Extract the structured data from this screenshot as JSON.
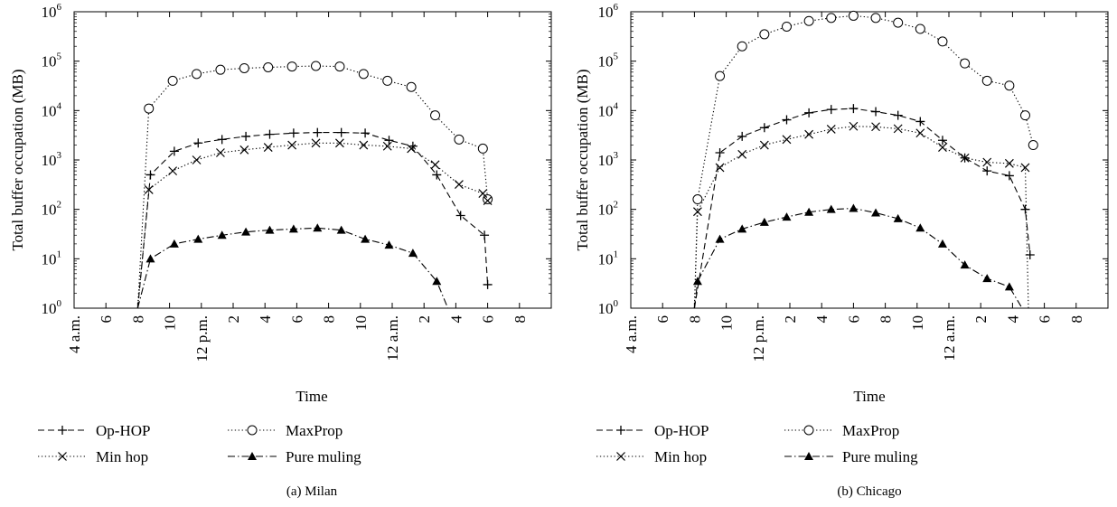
{
  "chart_data": [
    {
      "type": "line",
      "panel_caption": "(a) Milan",
      "xlabel": "Time",
      "ylabel": "Total buffer occupation (MB)",
      "yscale": "log",
      "ylim": [
        1,
        1000000
      ],
      "x_units": "hours since 4 a.m.",
      "xlim": [
        0,
        30
      ],
      "x_ticks": [
        {
          "x": 0,
          "label": "4 a.m."
        },
        {
          "x": 2,
          "label": "6"
        },
        {
          "x": 4,
          "label": "8"
        },
        {
          "x": 6,
          "label": "10"
        },
        {
          "x": 8,
          "label": "12 p.m."
        },
        {
          "x": 10,
          "label": "2"
        },
        {
          "x": 12,
          "label": "4"
        },
        {
          "x": 14,
          "label": "6"
        },
        {
          "x": 16,
          "label": "8"
        },
        {
          "x": 18,
          "label": "10"
        },
        {
          "x": 20,
          "label": "12 a.m."
        },
        {
          "x": 22,
          "label": "2"
        },
        {
          "x": 24,
          "label": "4"
        },
        {
          "x": 26,
          "label": "6"
        },
        {
          "x": 28,
          "label": "8"
        }
      ],
      "y_ticks": [
        {
          "exp": 0,
          "base": "10",
          "sup": "0"
        },
        {
          "exp": 1,
          "base": "10",
          "sup": "1"
        },
        {
          "exp": 2,
          "base": "10",
          "sup": "2"
        },
        {
          "exp": 3,
          "base": "10",
          "sup": "3"
        },
        {
          "exp": 4,
          "base": "10",
          "sup": "4"
        },
        {
          "exp": 5,
          "base": "10",
          "sup": "5"
        },
        {
          "exp": 6,
          "base": "10",
          "sup": "6"
        }
      ],
      "series": [
        {
          "name": "Op-HOP",
          "marker": "plus",
          "dash": "dashed",
          "x": [
            4.0,
            4.8,
            6.3,
            7.8,
            9.3,
            10.8,
            12.3,
            13.8,
            15.3,
            16.8,
            18.3,
            19.8,
            21.3,
            22.8,
            24.3,
            25.8,
            26.0
          ],
          "y": [
            1,
            500,
            1500,
            2200,
            2600,
            3000,
            3300,
            3500,
            3600,
            3600,
            3500,
            2500,
            1900,
            500,
            75,
            30,
            3
          ]
        },
        {
          "name": "MaxProp",
          "marker": "circle",
          "dash": "dotted",
          "x": [
            4.0,
            4.7,
            6.2,
            7.7,
            9.2,
            10.7,
            12.2,
            13.7,
            15.2,
            16.7,
            18.2,
            19.7,
            21.2,
            22.7,
            24.2,
            25.7,
            26.0
          ],
          "y": [
            1,
            11000,
            40000,
            55000,
            67000,
            72000,
            75000,
            78000,
            80000,
            78000,
            55000,
            40000,
            30000,
            8000,
            2600,
            1700,
            160
          ]
        },
        {
          "name": "Min hop",
          "marker": "x",
          "dash": "dotted",
          "x": [
            4.0,
            4.7,
            6.2,
            7.7,
            9.2,
            10.7,
            12.2,
            13.7,
            15.2,
            16.7,
            18.2,
            19.7,
            21.2,
            22.7,
            24.2,
            25.7,
            26.0
          ],
          "y": [
            1,
            250,
            600,
            1000,
            1400,
            1600,
            1800,
            2000,
            2200,
            2200,
            2000,
            1900,
            1700,
            800,
            320,
            210,
            150
          ]
        },
        {
          "name": "Pure muling",
          "marker": "triangle",
          "dash": "dashdot",
          "x": [
            4.0,
            4.8,
            6.3,
            7.8,
            9.3,
            10.8,
            12.3,
            13.8,
            15.3,
            16.8,
            18.3,
            19.8,
            21.3,
            22.8,
            23.5
          ],
          "y": [
            1,
            10,
            20,
            25,
            30,
            35,
            38,
            40,
            42,
            38,
            25,
            19,
            13,
            3.5,
            1
          ]
        }
      ]
    },
    {
      "type": "line",
      "panel_caption": "(b) Chicago",
      "xlabel": "Time",
      "ylabel": "Total buffer occupation (MB)",
      "yscale": "log",
      "ylim": [
        1,
        1000000
      ],
      "x_units": "hours since 4 a.m.",
      "xlim": [
        0,
        30
      ],
      "x_ticks": [
        {
          "x": 0,
          "label": "4 a.m."
        },
        {
          "x": 2,
          "label": "6"
        },
        {
          "x": 4,
          "label": "8"
        },
        {
          "x": 6,
          "label": "10"
        },
        {
          "x": 8,
          "label": "12 p.m."
        },
        {
          "x": 10,
          "label": "2"
        },
        {
          "x": 12,
          "label": "4"
        },
        {
          "x": 14,
          "label": "6"
        },
        {
          "x": 16,
          "label": "8"
        },
        {
          "x": 18,
          "label": "10"
        },
        {
          "x": 20,
          "label": "12 a.m."
        },
        {
          "x": 22,
          "label": "2"
        },
        {
          "x": 24,
          "label": "4"
        },
        {
          "x": 26,
          "label": "6"
        },
        {
          "x": 28,
          "label": "8"
        }
      ],
      "y_ticks": [
        {
          "exp": 0,
          "base": "10",
          "sup": "0"
        },
        {
          "exp": 1,
          "base": "10",
          "sup": "1"
        },
        {
          "exp": 2,
          "base": "10",
          "sup": "2"
        },
        {
          "exp": 3,
          "base": "10",
          "sup": "3"
        },
        {
          "exp": 4,
          "base": "10",
          "sup": "4"
        },
        {
          "exp": 5,
          "base": "10",
          "sup": "5"
        },
        {
          "exp": 6,
          "base": "10",
          "sup": "6"
        }
      ],
      "series": [
        {
          "name": "Op-HOP",
          "marker": "plus",
          "dash": "dashed",
          "x": [
            4.0,
            5.6,
            7.0,
            8.4,
            9.8,
            11.2,
            12.6,
            14.0,
            15.4,
            16.8,
            18.2,
            19.6,
            21.0,
            22.4,
            23.8,
            24.8,
            25.1
          ],
          "y": [
            1,
            1400,
            3000,
            4500,
            6500,
            9000,
            10500,
            11000,
            9500,
            8000,
            6000,
            2500,
            1100,
            600,
            480,
            100,
            12
          ]
        },
        {
          "name": "MaxProp",
          "marker": "circle",
          "dash": "dotted",
          "x": [
            4.0,
            4.2,
            5.6,
            7.0,
            8.4,
            9.8,
            11.2,
            12.6,
            14.0,
            15.4,
            16.8,
            18.2,
            19.6,
            21.0,
            22.4,
            23.8,
            24.8,
            25.3
          ],
          "y": [
            1,
            160,
            50000,
            200000,
            350000,
            500000,
            650000,
            750000,
            830000,
            750000,
            600000,
            450000,
            250000,
            90000,
            40000,
            32000,
            8000,
            2000
          ]
        },
        {
          "name": "Min hop",
          "marker": "x",
          "dash": "dotted",
          "x": [
            4.0,
            4.2,
            5.6,
            7.0,
            8.4,
            9.8,
            11.2,
            12.6,
            14.0,
            15.4,
            16.8,
            18.2,
            19.6,
            21.0,
            22.4,
            23.8,
            24.8,
            25.0
          ],
          "y": [
            1,
            90,
            700,
            1300,
            2000,
            2600,
            3300,
            4200,
            4800,
            4700,
            4300,
            3500,
            1800,
            1100,
            900,
            850,
            700,
            1
          ]
        },
        {
          "name": "Pure muling",
          "marker": "triangle",
          "dash": "dashdot",
          "x": [
            4.0,
            4.2,
            5.6,
            7.0,
            8.4,
            9.8,
            11.2,
            12.6,
            14.0,
            15.4,
            16.8,
            18.2,
            19.6,
            21.0,
            22.4,
            23.8,
            24.6
          ],
          "y": [
            1,
            3.5,
            25,
            40,
            55,
            70,
            88,
            100,
            105,
            85,
            65,
            42,
            20,
            7.5,
            4,
            2.7,
            1
          ]
        }
      ]
    }
  ],
  "legend": [
    {
      "label": "Op-HOP",
      "marker": "plus",
      "dash": "dashed"
    },
    {
      "label": "MaxProp",
      "marker": "circle",
      "dash": "dotted"
    },
    {
      "label": "Min hop",
      "marker": "x",
      "dash": "dotted"
    },
    {
      "label": "Pure muling",
      "marker": "triangle",
      "dash": "dashdot"
    }
  ]
}
